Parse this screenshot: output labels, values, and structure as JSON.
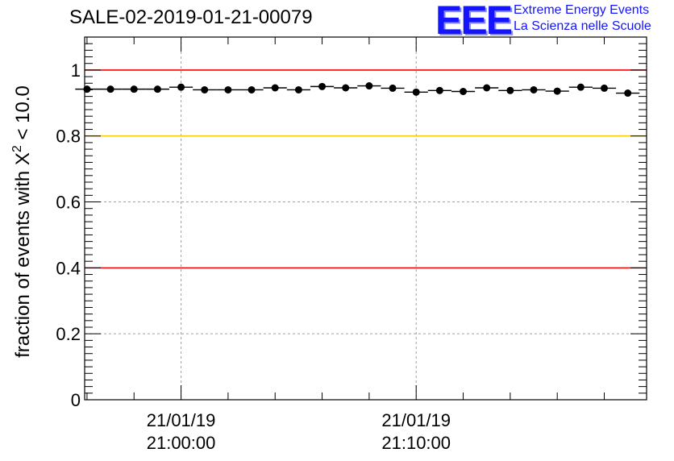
{
  "header": {
    "title": "SALE-02-2019-01-21-00079"
  },
  "logo": {
    "letters": "EEE",
    "line1": "Extreme Energy Events",
    "line2": "La Scienza nelle Scuole",
    "color": "#1414ff"
  },
  "chart_data": {
    "type": "scatter",
    "title": "SALE-02-2019-01-21-00079",
    "xlabel": "",
    "ylabel": "fraction of events with χ² < 10.0",
    "ylabel_parts": {
      "prefix": "fraction of events with ",
      "symbol": "X",
      "sup": "2",
      "suffix": " < 10.0"
    },
    "ylim": [
      0,
      1.1
    ],
    "yticks": [
      0,
      0.2,
      0.4,
      0.6,
      0.8,
      1
    ],
    "ytick_labels": [
      "0",
      "0.2",
      "0.4",
      "0.6",
      "0.8",
      "1"
    ],
    "xlim_minutes": [
      -4.1,
      19.8
    ],
    "xticks": [
      {
        "minute": 0,
        "date": "21/01/19",
        "time": "21:00:00"
      },
      {
        "minute": 10,
        "date": "21/01/19",
        "time": "21:10:00"
      }
    ],
    "bin_width_minutes": 1,
    "x_minutes": [
      -4,
      -3,
      -2,
      -1,
      0,
      1,
      2,
      3,
      4,
      5,
      6,
      7,
      8,
      9,
      10,
      11,
      12,
      13,
      14,
      15,
      16,
      17,
      18,
      19
    ],
    "values": [
      0.942,
      0.942,
      0.942,
      0.942,
      0.948,
      0.94,
      0.94,
      0.94,
      0.946,
      0.94,
      0.95,
      0.946,
      0.952,
      0.945,
      0.933,
      0.938,
      0.935,
      0.946,
      0.938,
      0.94,
      0.936,
      0.948,
      0.945,
      0.93
    ],
    "reference_lines": [
      {
        "y": 1.0,
        "color": "#ff0000"
      },
      {
        "y": 0.8,
        "color": "#ffcc00"
      },
      {
        "y": 0.4,
        "color": "#ff0000"
      }
    ],
    "grid": true
  }
}
